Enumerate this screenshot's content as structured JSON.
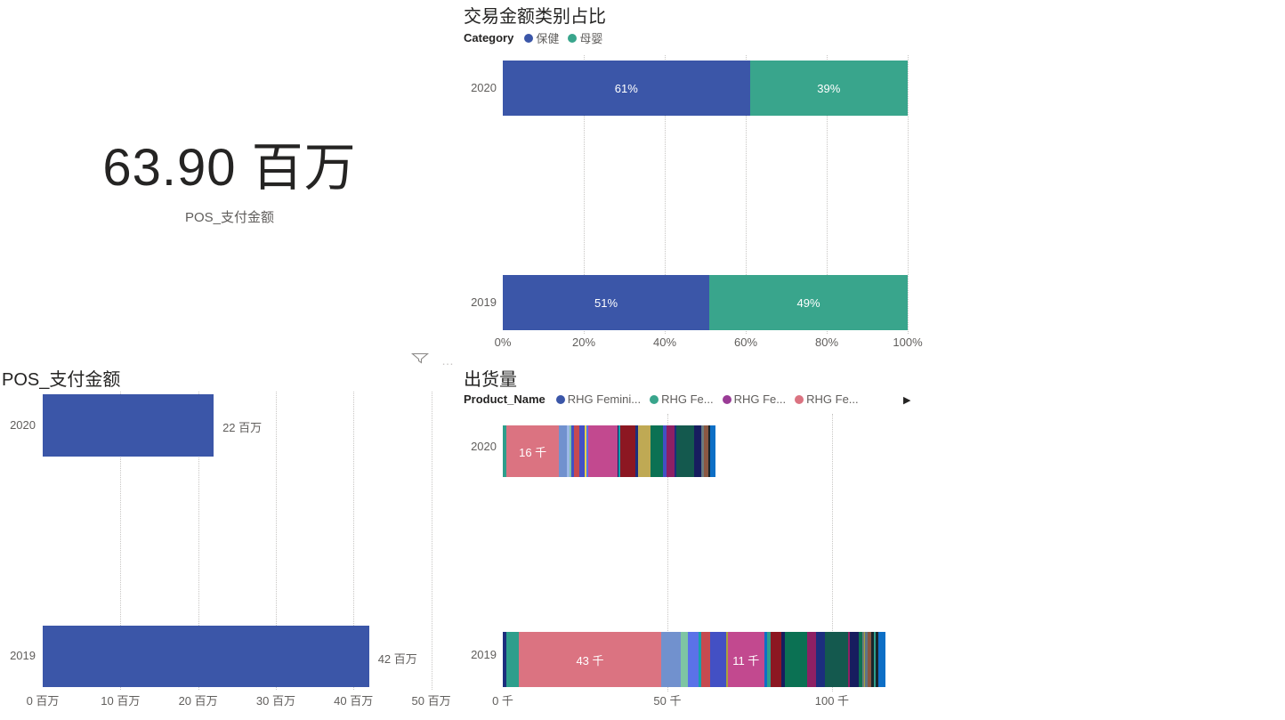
{
  "page": {
    "background": "#FFFFFF"
  },
  "visual_header": {
    "more_icon": "…"
  },
  "chart_data": [
    {
      "id": "kpi_card",
      "type": "card",
      "value": "63.90 百万",
      "label": "POS_支付金额"
    },
    {
      "id": "category_share",
      "type": "bar",
      "subtype": "stacked-100-horizontal",
      "title": "交易金额类别占比",
      "legend_title": "Category",
      "legend_position": "top",
      "grid": true,
      "legend": [
        {
          "label": "保健",
          "color": "#3B56A8"
        },
        {
          "label": "母婴",
          "color": "#39A58C"
        }
      ],
      "categories": [
        "2020",
        "2019"
      ],
      "series": [
        {
          "name": "保健",
          "color": "#3B56A8",
          "values": [
            61,
            51
          ]
        },
        {
          "name": "母婴",
          "color": "#39A58C",
          "values": [
            39,
            49
          ]
        }
      ],
      "data_labels": [
        [
          "61%",
          "39%"
        ],
        [
          "51%",
          "49%"
        ]
      ],
      "xlim": [
        0,
        100
      ],
      "x_ticks": [
        {
          "label": "0%",
          "value": 0
        },
        {
          "label": "20%",
          "value": 20
        },
        {
          "label": "40%",
          "value": 40
        },
        {
          "label": "60%",
          "value": 60
        },
        {
          "label": "80%",
          "value": 80
        },
        {
          "label": "100%",
          "value": 100
        }
      ]
    },
    {
      "id": "pos_amount",
      "type": "bar",
      "subtype": "horizontal",
      "title": "POS_支付金额",
      "grid": true,
      "color": "#3B56A8",
      "categories": [
        "2020",
        "2019"
      ],
      "values": [
        22,
        42
      ],
      "value_unit": "百万",
      "data_labels": [
        "22 百万",
        "42 百万"
      ],
      "xlim": [
        0,
        52
      ],
      "x_ticks": [
        {
          "label": "0 百万",
          "value": 0
        },
        {
          "label": "10 百万",
          "value": 10
        },
        {
          "label": "20 百万",
          "value": 20
        },
        {
          "label": "30 百万",
          "value": 30
        },
        {
          "label": "40 百万",
          "value": 40
        },
        {
          "label": "50 百万",
          "value": 50
        }
      ]
    },
    {
      "id": "shipment",
      "type": "bar",
      "subtype": "stacked-horizontal",
      "title": "出货量",
      "legend_title": "Product_Name",
      "legend_position": "top",
      "legend_overflow_arrow": "▶",
      "grid": true,
      "legend": [
        {
          "label": "RHG Femini...",
          "color": "#3B56A8"
        },
        {
          "label": "RHG Fe...",
          "color": "#39A58C"
        },
        {
          "label": "RHG Fe...",
          "color": "#9A3C96"
        },
        {
          "label": "RHG Fe...",
          "color": "#DB7381"
        }
      ],
      "categories": [
        "2020",
        "2019"
      ],
      "value_unit": "千",
      "xlim": [
        0,
        123
      ],
      "x_ticks": [
        {
          "label": "0 千",
          "value": 0
        },
        {
          "label": "50 千",
          "value": 50
        },
        {
          "label": "100 千",
          "value": 100
        }
      ],
      "rows": [
        {
          "category": "2020",
          "segments": [
            {
              "v": 1.1,
              "c": "#2E9E8C"
            },
            {
              "v": 16,
              "c": "#DB7381",
              "label": "16 千"
            },
            {
              "v": 2.3,
              "c": "#7191CE"
            },
            {
              "v": 0.8,
              "c": "#9DB8E8"
            },
            {
              "v": 0.6,
              "c": "#7EC5A3"
            },
            {
              "v": 0.8,
              "c": "#4350C4"
            },
            {
              "v": 1.6,
              "c": "#C64A50"
            },
            {
              "v": 1.6,
              "c": "#4350C4"
            },
            {
              "v": 0.6,
              "c": "#E5D44B"
            },
            {
              "v": 0.5,
              "c": "#5B72E8"
            },
            {
              "v": 9,
              "c": "#C2498F"
            },
            {
              "v": 0.4,
              "c": "#171D5F"
            },
            {
              "v": 0.5,
              "c": "#16A0AC"
            },
            {
              "v": 4.5,
              "c": "#8C1722"
            },
            {
              "v": 0.8,
              "c": "#1C2E7E"
            },
            {
              "v": 3.7,
              "c": "#BFA954"
            },
            {
              "v": 4,
              "c": "#0B7153"
            },
            {
              "v": 1,
              "c": "#4350C4"
            },
            {
              "v": 2.4,
              "c": "#8E2064"
            },
            {
              "v": 0.5,
              "c": "#1C2E7E"
            },
            {
              "v": 5.6,
              "c": "#14594E"
            },
            {
              "v": 1.9,
              "c": "#171D5F"
            },
            {
              "v": 0.5,
              "c": "#5E7485"
            },
            {
              "v": 0.5,
              "c": "#6E7B7B"
            },
            {
              "v": 1.3,
              "c": "#8A5742"
            },
            {
              "v": 0.5,
              "c": "#19252B"
            },
            {
              "v": 1.6,
              "c": "#0D6FC6"
            }
          ]
        },
        {
          "category": "2019",
          "segments": [
            {
              "v": 1,
              "c": "#1C2E7E"
            },
            {
              "v": 4,
              "c": "#2E9E8C"
            },
            {
              "v": 43,
              "c": "#DB7381",
              "label": "43 千"
            },
            {
              "v": 6,
              "c": "#7191CE"
            },
            {
              "v": 2.2,
              "c": "#7EC5A3"
            },
            {
              "v": 3.2,
              "c": "#5B72E8"
            },
            {
              "v": 0.8,
              "c": "#16A0AC"
            },
            {
              "v": 2.7,
              "c": "#C64A50"
            },
            {
              "v": 5,
              "c": "#4350C4"
            },
            {
              "v": 0.5,
              "c": "#A9A23C"
            },
            {
              "v": 11,
              "c": "#C2498F",
              "label": "11 千"
            },
            {
              "v": 1,
              "c": "#0D6FC6"
            },
            {
              "v": 1,
              "c": "#2E9E8C"
            },
            {
              "v": 3.2,
              "c": "#8C1722"
            },
            {
              "v": 1,
              "c": "#171D5F"
            },
            {
              "v": 7,
              "c": "#0B7153"
            },
            {
              "v": 2.7,
              "c": "#8E2064"
            },
            {
              "v": 2.7,
              "c": "#1C2E7E"
            },
            {
              "v": 7,
              "c": "#14594E"
            },
            {
              "v": 0.5,
              "c": "#8E2064"
            },
            {
              "v": 2.7,
              "c": "#171D5F"
            },
            {
              "v": 1,
              "c": "#0B7153"
            },
            {
              "v": 0.5,
              "c": "#6E7B7B"
            },
            {
              "v": 0.5,
              "c": "#A9A23C"
            },
            {
              "v": 0.8,
              "c": "#5E7485"
            },
            {
              "v": 1,
              "c": "#8A5742"
            },
            {
              "v": 0.8,
              "c": "#19252B"
            },
            {
              "v": 0.5,
              "c": "#2E9E8C"
            },
            {
              "v": 0.8,
              "c": "#19252B"
            },
            {
              "v": 2.3,
              "c": "#0D6FC6"
            }
          ]
        }
      ]
    }
  ]
}
